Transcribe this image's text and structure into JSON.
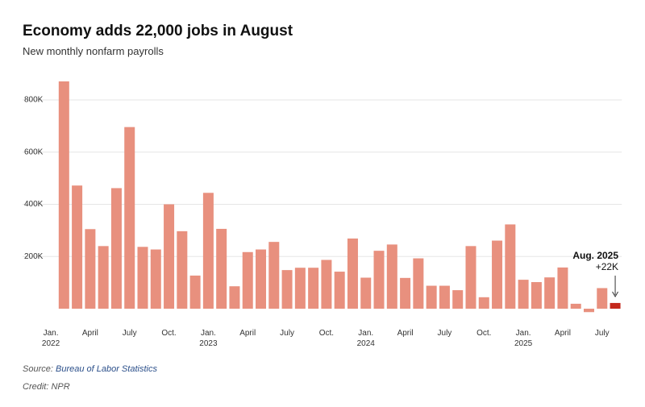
{
  "chart_data": {
    "type": "bar",
    "title": "Economy adds 22,000 jobs in August",
    "subtitle": "New monthly nonfarm payrolls",
    "categories": [
      "Jan.\n2022",
      null,
      null,
      "April",
      null,
      null,
      "July",
      null,
      null,
      "Oct.",
      null,
      null,
      "Jan.\n2023",
      null,
      null,
      "April",
      null,
      null,
      "July",
      null,
      null,
      "Oct.",
      null,
      null,
      "Jan.\n2024",
      null,
      null,
      "April",
      null,
      null,
      "July",
      null,
      null,
      "Oct.",
      null,
      null,
      "Jan.\n2025",
      null,
      null,
      "April",
      null,
      null,
      "July",
      null
    ],
    "values": [
      null,
      871000,
      472000,
      305000,
      240000,
      462000,
      696000,
      237000,
      227000,
      400000,
      297000,
      127000,
      444000,
      306000,
      86000,
      217000,
      227000,
      256000,
      148000,
      157000,
      157000,
      187000,
      142000,
      269000,
      119000,
      222000,
      246000,
      118000,
      193000,
      88000,
      88000,
      71000,
      240000,
      44000,
      261000,
      323000,
      111000,
      102000,
      120000,
      158000,
      19000,
      -13000,
      79000,
      22000
    ],
    "color": "#e8907e",
    "highlight_color": "#c4281c",
    "ylim": [
      -40000,
      900000
    ],
    "yticks": [
      {
        "value": 200000,
        "label": "200K"
      },
      {
        "value": 400000,
        "label": "400K"
      },
      {
        "value": 600000,
        "label": "600K"
      },
      {
        "value": 800000,
        "label": "800K"
      }
    ],
    "grid": true,
    "annotation": {
      "title": "Aug. 2025",
      "text": "+22K"
    },
    "source_label": "Source:",
    "source": "Bureau of Labor Statistics",
    "credit": "Credit: NPR"
  }
}
